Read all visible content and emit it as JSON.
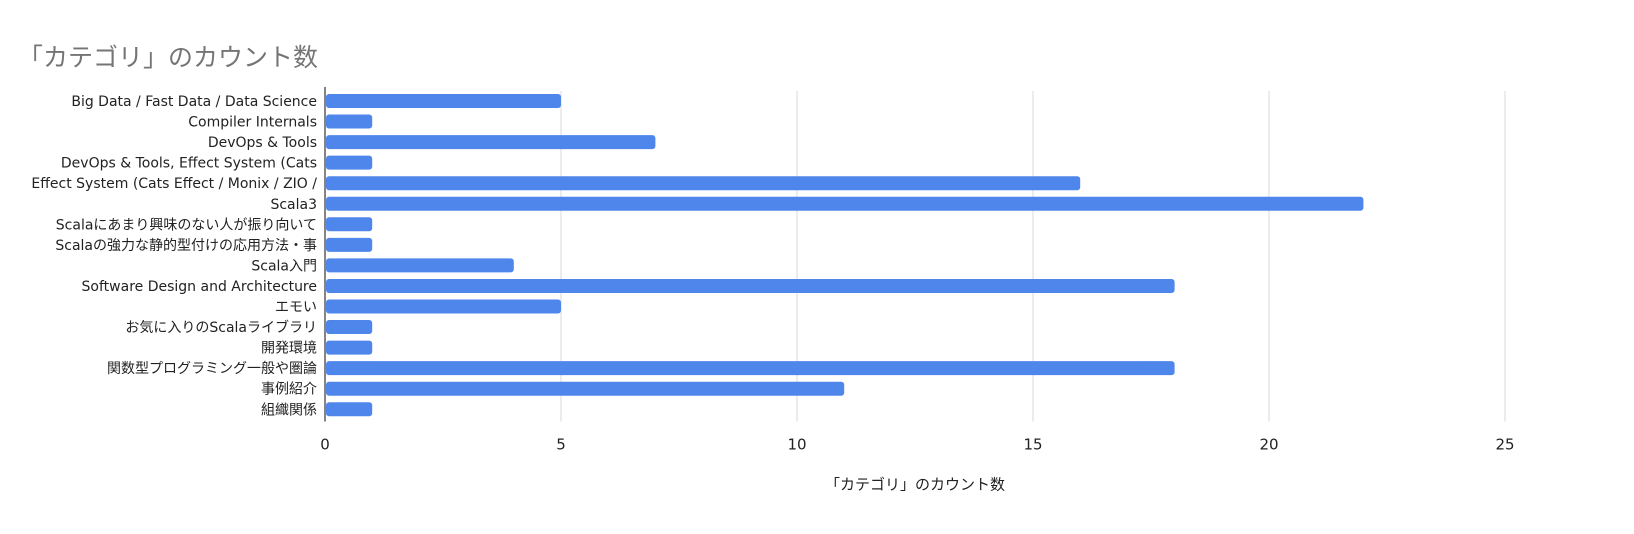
{
  "chart_data": {
    "type": "bar",
    "orientation": "horizontal",
    "title": "「カテゴリ」のカウント数",
    "xlabel": "「カテゴリ」のカウント数",
    "ylabel": "",
    "xlim": [
      0,
      25
    ],
    "xticks": [
      0,
      5,
      10,
      15,
      20,
      25
    ],
    "grid": true,
    "legend": "none",
    "bar_color": "#4f86ec",
    "categories": [
      "Big Data / Fast Data / Data Science",
      "Compiler Internals",
      "DevOps & Tools",
      "DevOps & Tools, Effect System (Cats",
      "Effect System (Cats Effect / Monix / ZIO /",
      "Scala3",
      "Scalaにあまり興味のない人が振り向いて",
      "Scalaの強力な静的型付けの応用方法・事",
      "Scala入門",
      "Software Design and Architecture",
      "エモい",
      "お気に入りのScalaライブラリ",
      "開発環境",
      "関数型プログラミング一般や圏論",
      "事例紹介",
      "組織関係"
    ],
    "values": [
      5,
      1,
      7,
      1,
      16,
      22,
      1,
      1,
      4,
      18,
      5,
      1,
      1,
      18,
      11,
      1
    ]
  }
}
